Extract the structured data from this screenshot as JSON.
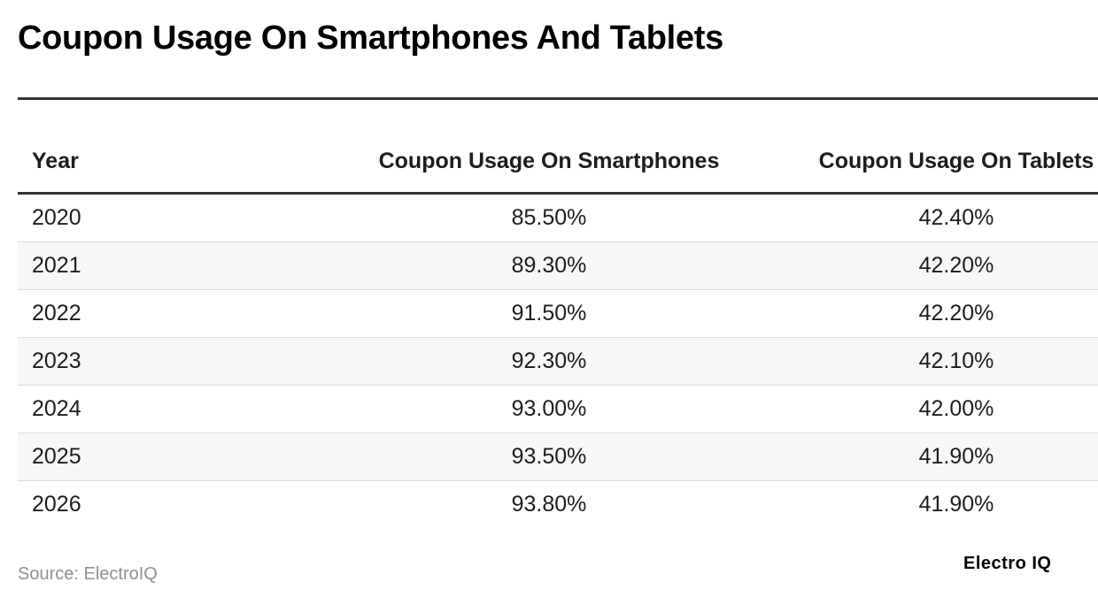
{
  "header": {
    "title": "Coupon Usage On Smartphones And Tablets"
  },
  "table": {
    "columns": [
      "Year",
      "Coupon Usage On Smartphones",
      "Coupon Usage On Tablets"
    ],
    "rows": [
      [
        "2020",
        "85.50%",
        "42.40%"
      ],
      [
        "2021",
        "89.30%",
        "42.20%"
      ],
      [
        "2022",
        "91.50%",
        "42.20%"
      ],
      [
        "2023",
        "92.30%",
        "42.10%"
      ],
      [
        "2024",
        "93.00%",
        "42.00%"
      ],
      [
        "2025",
        "93.50%",
        "41.90%"
      ],
      [
        "2026",
        "93.80%",
        "41.90%"
      ]
    ]
  },
  "footer": {
    "source": "Source: ElectroIQ",
    "logo": "Electro IQ"
  }
}
